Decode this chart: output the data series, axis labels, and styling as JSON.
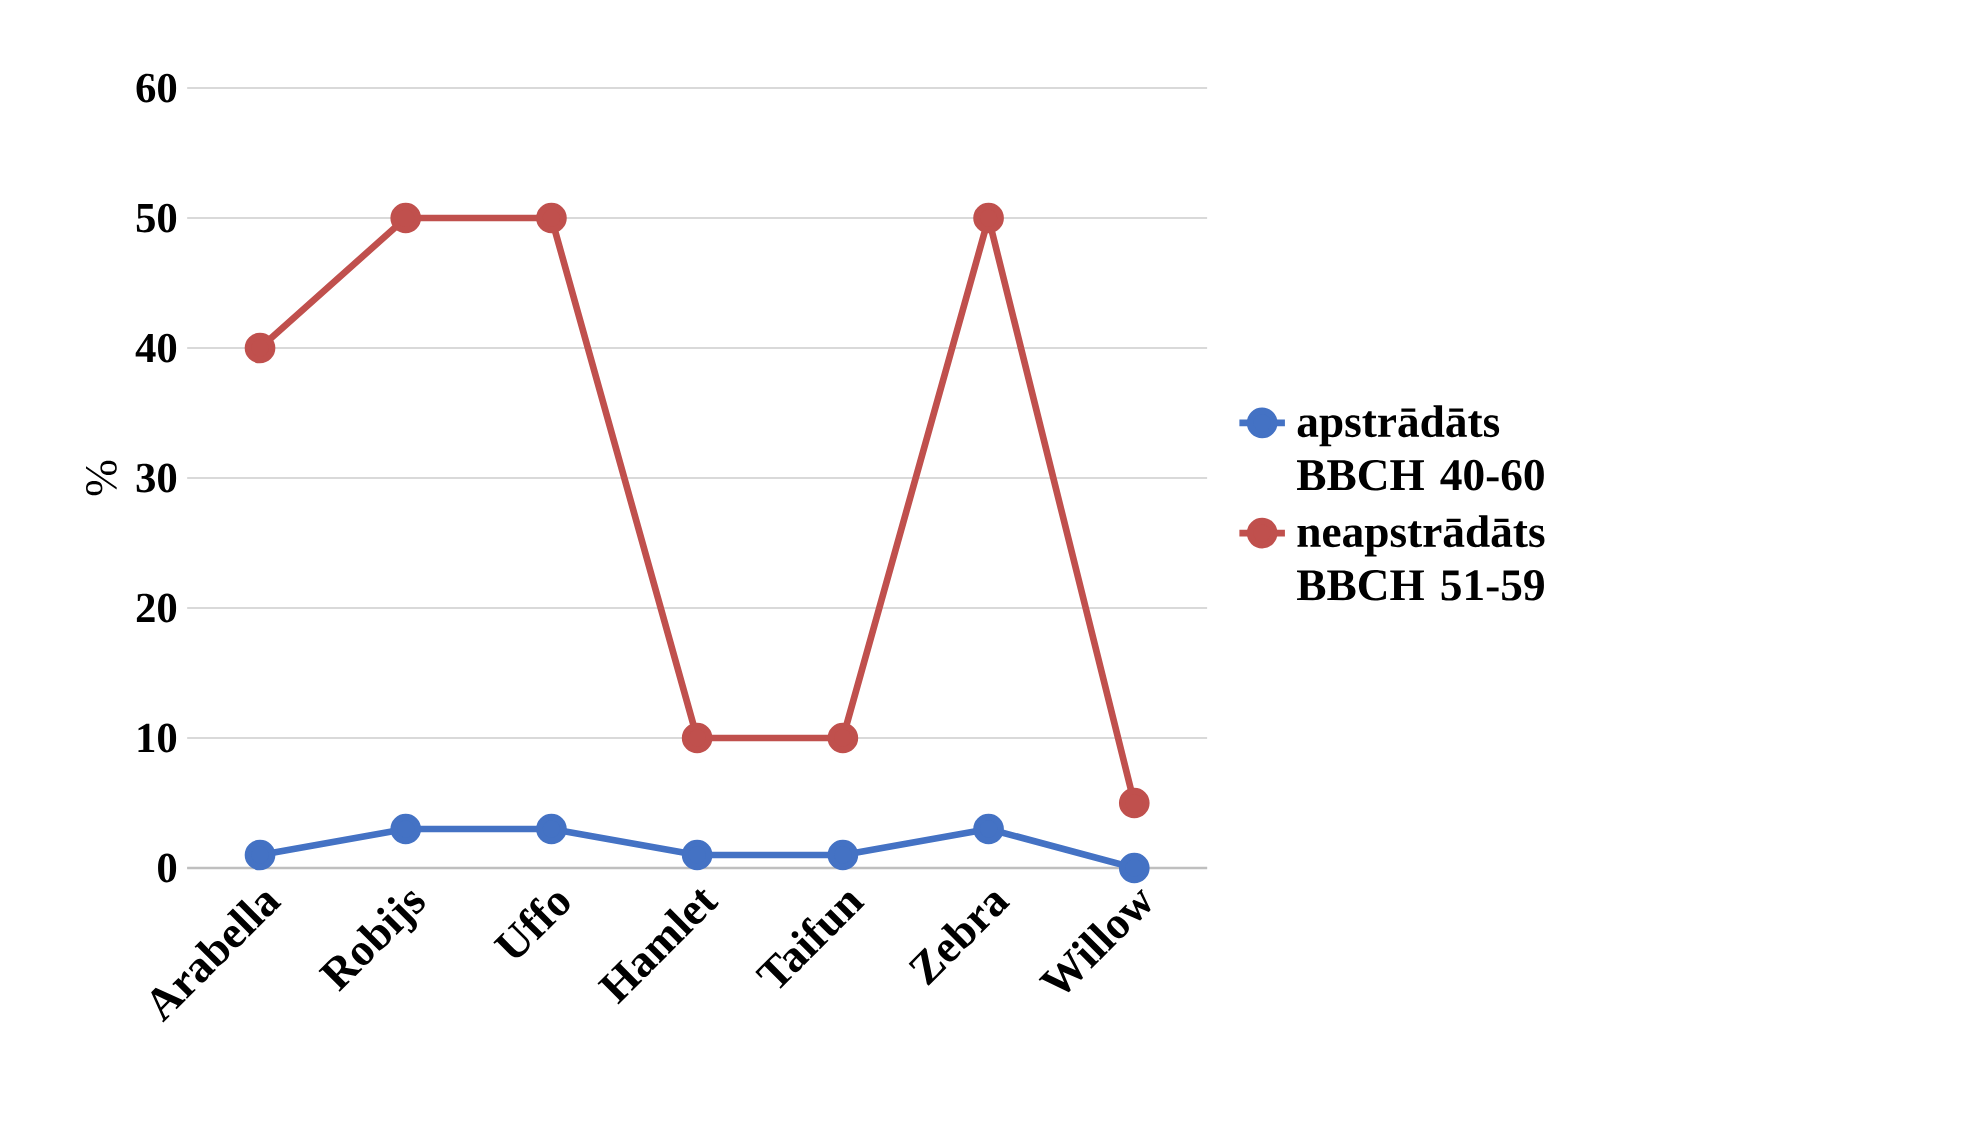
{
  "chart_data": {
    "type": "line",
    "ylabel": "%",
    "categories": [
      "Arabella",
      "Robijs",
      "Uffo",
      "Hamlet",
      "Taifun",
      "Zebra",
      "Willow"
    ],
    "series": [
      {
        "name": "apstrādāts BBCH 40-60",
        "color": "#4472c4",
        "values": [
          1,
          3,
          3,
          1,
          1,
          3,
          0
        ]
      },
      {
        "name": "neapstrādāts BBCH 51-59",
        "color": "#c0504d",
        "values": [
          40,
          50,
          50,
          10,
          10,
          50,
          5
        ]
      }
    ],
    "ylim": [
      0,
      60
    ],
    "yticks": [
      0,
      10,
      20,
      30,
      40,
      50,
      60
    ],
    "grid": "y",
    "legend": "right",
    "marker": "circle",
    "line_style": "solid"
  }
}
